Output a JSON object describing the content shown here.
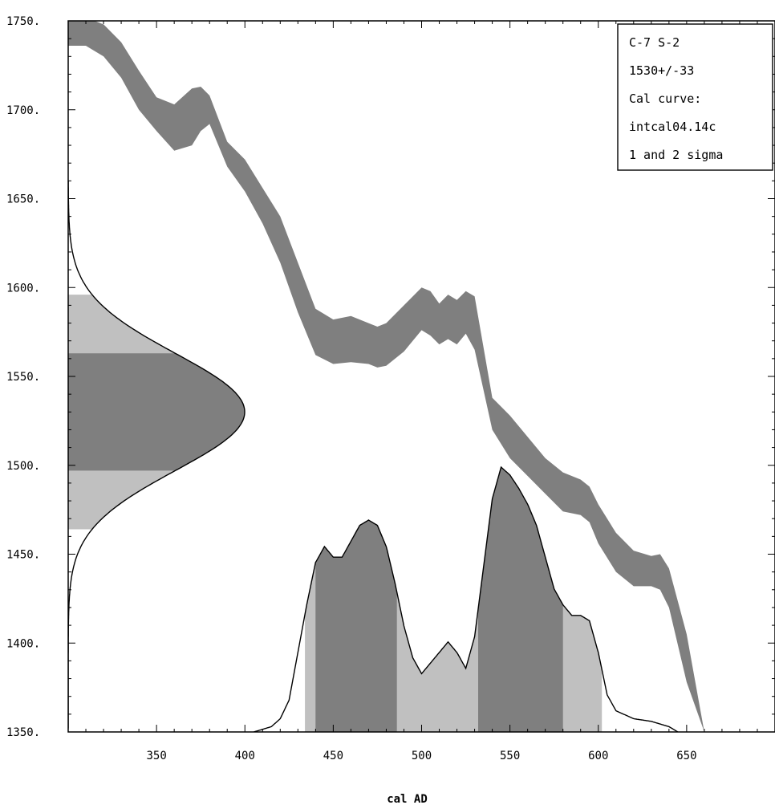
{
  "chart_data": {
    "type": "area",
    "xlabel": "cal AD",
    "ylabel": "",
    "xlim": [
      300,
      700
    ],
    "ylim": [
      1350,
      1750
    ],
    "x_ticks": [
      350,
      400,
      450,
      500,
      550,
      600,
      650
    ],
    "y_ticks": [
      1350,
      1400,
      1450,
      1500,
      1550,
      1600,
      1650,
      1700,
      1750
    ],
    "x_tick_labels": [
      "350",
      "400",
      "450",
      "500",
      "550",
      "600",
      "650"
    ],
    "y_tick_labels": [
      "1350.",
      "1400.",
      "1450.",
      "1500.",
      "1550.",
      "1600.",
      "1650.",
      "1700.",
      "1750."
    ],
    "legend": {
      "position": "top-right",
      "lines": [
        "C-7 S-2",
        "1530+/-33",
        "Cal curve:",
        "intcal04.14c",
        "1 and 2 sigma"
      ]
    },
    "series": [
      {
        "kind": "calibration_curve_band",
        "x": [
          300,
          310,
          320,
          330,
          340,
          350,
          360,
          370,
          375,
          380,
          390,
          400,
          410,
          420,
          430,
          440,
          450,
          460,
          470,
          475,
          480,
          490,
          500,
          505,
          510,
          515,
          520,
          525,
          530,
          540,
          550,
          560,
          570,
          580,
          590,
          595,
          600,
          610,
          620,
          630,
          635,
          640,
          650,
          660
        ],
        "upper": [
          1752,
          1752,
          1748,
          1738,
          1722,
          1707,
          1703,
          1712,
          1713,
          1708,
          1682,
          1672,
          1656,
          1640,
          1614,
          1588,
          1582,
          1584,
          1580,
          1578,
          1580,
          1590,
          1600,
          1598,
          1591,
          1596,
          1593,
          1598,
          1595,
          1538,
          1528,
          1516,
          1504,
          1496,
          1492,
          1488,
          1478,
          1462,
          1452,
          1449,
          1450,
          1442,
          1405,
          1350
        ],
        "lower": [
          1736,
          1736,
          1730,
          1718,
          1700,
          1688,
          1677,
          1680,
          1688,
          1692,
          1668,
          1654,
          1636,
          1614,
          1586,
          1562,
          1557,
          1558,
          1557,
          1555,
          1556,
          1564,
          1576,
          1573,
          1568,
          1571,
          1568,
          1574,
          1565,
          1520,
          1504,
          1494,
          1484,
          1474,
          1472,
          1468,
          1456,
          1440,
          1432,
          1432,
          1430,
          1420,
          1378,
          1350
        ]
      },
      {
        "kind": "radiocarbon_probability",
        "mean": 1530,
        "sigma": 33,
        "one_sigma_range": [
          1497,
          1563
        ],
        "two_sigma_range": [
          1464,
          1596
        ]
      },
      {
        "kind": "calibrated_probability",
        "x": [
          405,
          415,
          420,
          425,
          430,
          435,
          440,
          445,
          450,
          455,
          460,
          465,
          470,
          475,
          480,
          485,
          490,
          495,
          500,
          505,
          510,
          515,
          520,
          525,
          530,
          535,
          540,
          545,
          550,
          555,
          560,
          565,
          570,
          575,
          580,
          585,
          590,
          595,
          600,
          605,
          610,
          620,
          630,
          640,
          645
        ],
        "density": [
          0.0,
          0.02,
          0.05,
          0.12,
          0.3,
          0.48,
          0.64,
          0.7,
          0.66,
          0.66,
          0.72,
          0.78,
          0.8,
          0.78,
          0.7,
          0.56,
          0.4,
          0.28,
          0.22,
          0.26,
          0.3,
          0.34,
          0.3,
          0.24,
          0.36,
          0.62,
          0.88,
          1.0,
          0.97,
          0.92,
          0.86,
          0.78,
          0.66,
          0.54,
          0.48,
          0.44,
          0.44,
          0.42,
          0.3,
          0.14,
          0.08,
          0.05,
          0.04,
          0.02,
          0.0
        ],
        "one_sigma_ranges": [
          [
            440,
            486
          ],
          [
            532,
            580
          ]
        ],
        "two_sigma_ranges": [
          [
            434,
            602
          ]
        ]
      }
    ],
    "colors": {
      "curve_band": "#7f7f7f",
      "one_sigma_fill": "#7f7f7f",
      "two_sigma_fill": "#c0c0c0",
      "outline": "#000000",
      "background": "#ffffff"
    }
  }
}
